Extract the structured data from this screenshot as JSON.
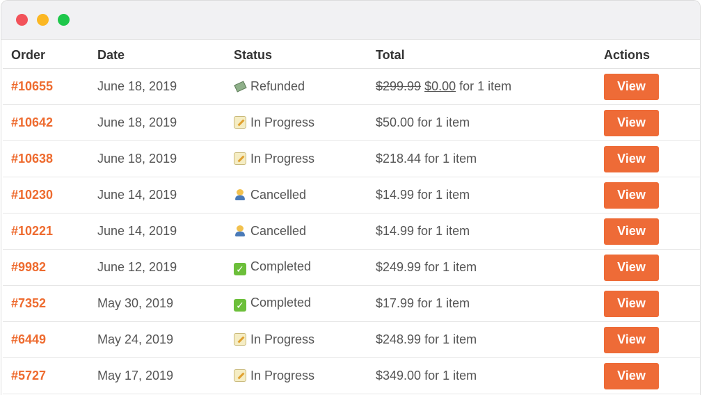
{
  "table": {
    "headers": {
      "order": "Order",
      "date": "Date",
      "status": "Status",
      "total": "Total",
      "actions": "Actions"
    },
    "rows": [
      {
        "order": "#10655",
        "date": "June 18, 2019",
        "status": "Refunded",
        "status_icon": "money-flying-icon",
        "total_old": "$299.99",
        "total_new": "$0.00",
        "total_suffix": " for 1 item",
        "total": "",
        "action": "View"
      },
      {
        "order": "#10642",
        "date": "June 18, 2019",
        "status": "In Progress",
        "status_icon": "memo-icon",
        "total": "$50.00 for 1 item",
        "action": "View"
      },
      {
        "order": "#10638",
        "date": "June 18, 2019",
        "status": "In Progress",
        "status_icon": "memo-icon",
        "total": "$218.44 for 1 item",
        "action": "View"
      },
      {
        "order": "#10230",
        "date": "June 14, 2019",
        "status": "Cancelled",
        "status_icon": "person-icon",
        "total": "$14.99 for 1 item",
        "action": "View"
      },
      {
        "order": "#10221",
        "date": "June 14, 2019",
        "status": "Cancelled",
        "status_icon": "person-icon",
        "total": "$14.99 for 1 item",
        "action": "View"
      },
      {
        "order": "#9982",
        "date": "June 12, 2019",
        "status": "Completed",
        "status_icon": "check-mark-icon",
        "total": "$249.99 for 1 item",
        "action": "View"
      },
      {
        "order": "#7352",
        "date": "May 30, 2019",
        "status": "Completed",
        "status_icon": "check-mark-icon",
        "total": "$17.99 for 1 item",
        "action": "View"
      },
      {
        "order": "#6449",
        "date": "May 24, 2019",
        "status": "In Progress",
        "status_icon": "memo-icon",
        "total": "$248.99 for 1 item",
        "action": "View"
      },
      {
        "order": "#5727",
        "date": "May 17, 2019",
        "status": "In Progress",
        "status_icon": "memo-icon",
        "total": "$349.00 for 1 item",
        "action": "View"
      }
    ]
  },
  "colors": {
    "accent": "#ee6b37",
    "link": "#ee6b2f",
    "close_dot": "#f2525a",
    "minimize_dot": "#fbb723",
    "maximize_dot": "#1ec74b"
  }
}
